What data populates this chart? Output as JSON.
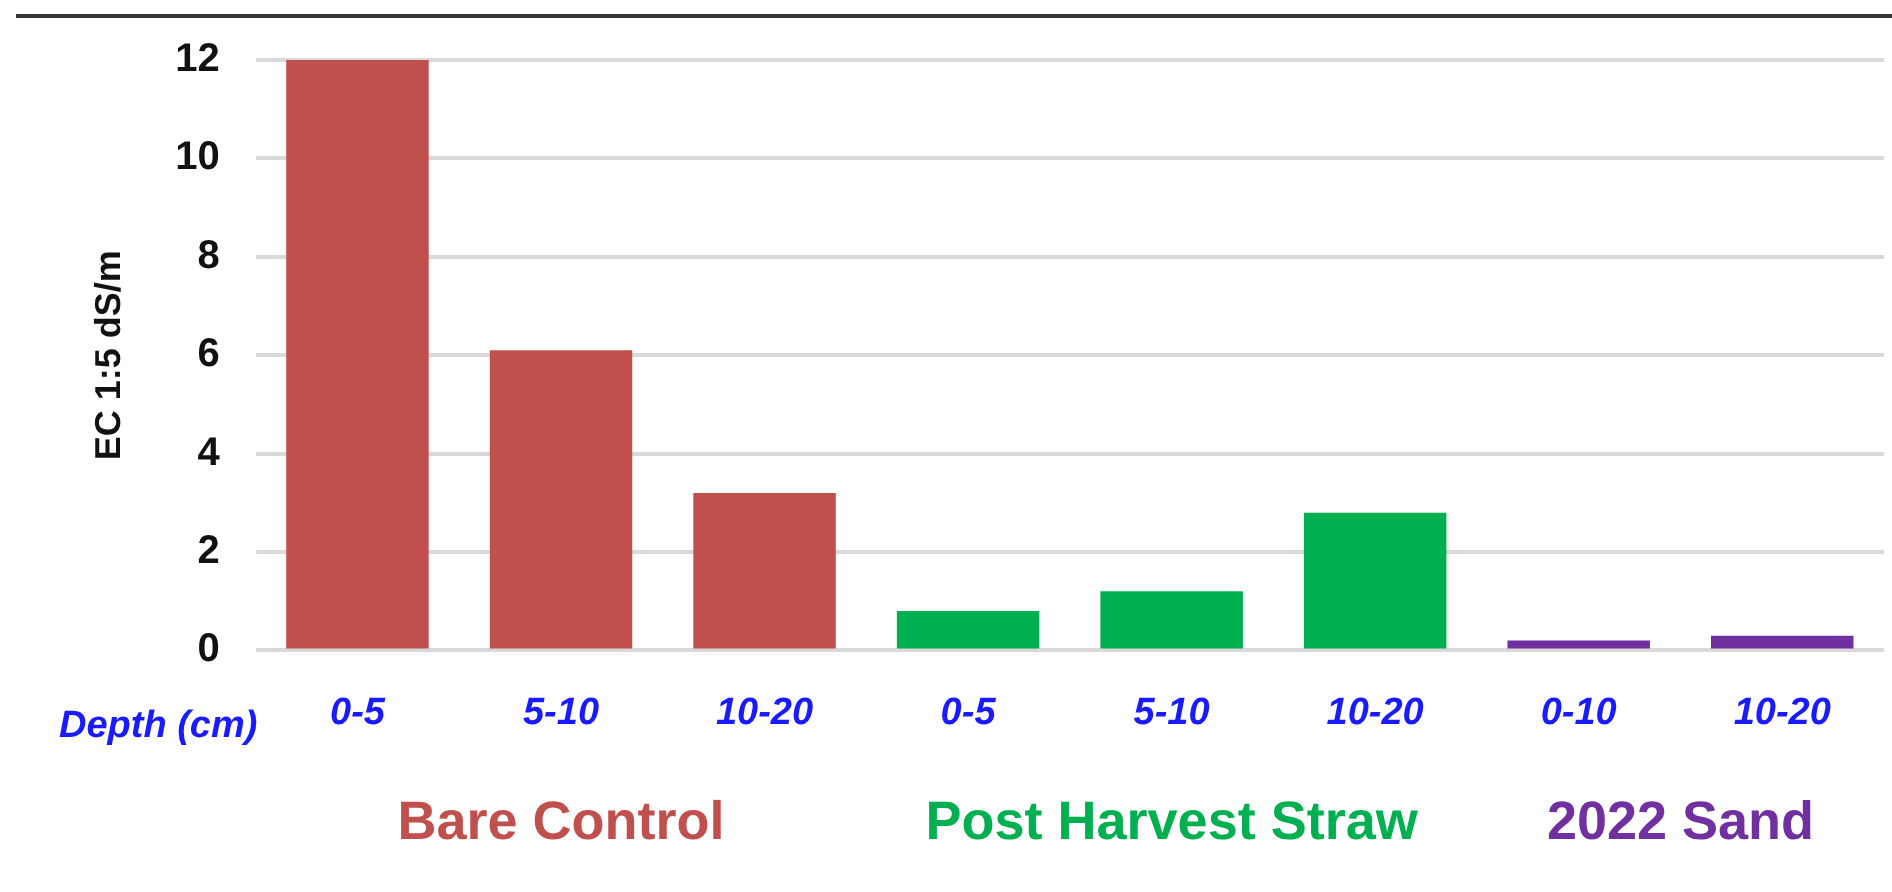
{
  "chart_data": {
    "type": "bar",
    "ylabel": "EC 1:5 dS/m",
    "xlabel": "Depth (cm)",
    "categories": [
      "0-5",
      "5-10",
      "10-20",
      "0-5",
      "5-10",
      "10-20",
      "0-10",
      "10-20"
    ],
    "series": [
      {
        "name": "Bare Control",
        "color": "#c0504d",
        "values": [
          12,
          6.1,
          3.2,
          null,
          null,
          null,
          null,
          null
        ]
      },
      {
        "name": "Post Harvest Straw",
        "color": "#00b050",
        "values": [
          null,
          null,
          null,
          0.8,
          1.2,
          2.8,
          null,
          null
        ]
      },
      {
        "name": "2022 Sand",
        "color": "#7030a0",
        "values": [
          null,
          null,
          null,
          null,
          null,
          null,
          0.2,
          0.3
        ]
      }
    ],
    "ylim": [
      0,
      12
    ],
    "yticks": [
      0,
      2,
      4,
      6,
      8,
      10,
      12
    ],
    "grid": "y",
    "legend": false
  }
}
